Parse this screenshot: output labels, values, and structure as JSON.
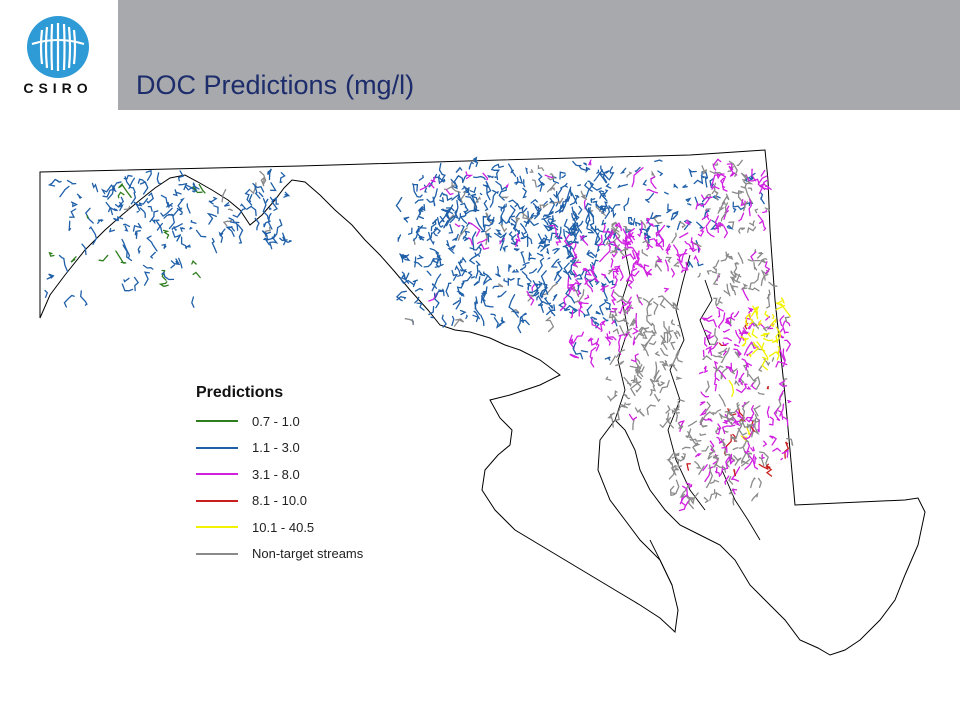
{
  "header": {
    "logo_text": "CSIRO",
    "title": "DOC Predictions",
    "title_unit": "(mg/l)"
  },
  "legend": {
    "title": "Predictions",
    "items": [
      {
        "label": "0.7 - 1.0",
        "color": "#2e7d1e"
      },
      {
        "label": "1.1 - 3.0",
        "color": "#1f5fa8"
      },
      {
        "label": "3.1 - 8.0",
        "color": "#d020e0"
      },
      {
        "label": "8.1 - 10.0",
        "color": "#c81e1e"
      },
      {
        "label": "10.1 - 40.5",
        "color": "#f2f200"
      },
      {
        "label": "Non-target streams",
        "color": "#8a8a8a"
      }
    ]
  },
  "colors": {
    "header_bar": "#a7a9ac",
    "logo_blue": "#2e9ad6",
    "title_text": "#1d2c6b",
    "state_outline": "#000000"
  }
}
